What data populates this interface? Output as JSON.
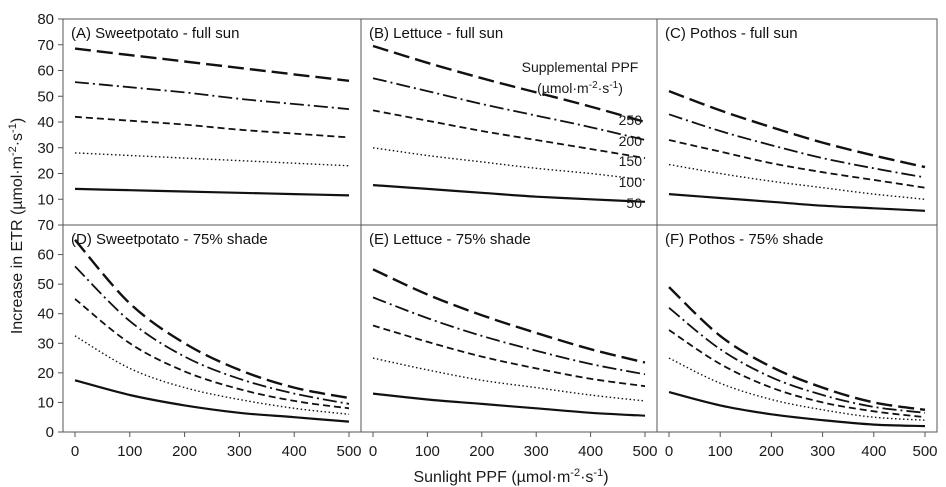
{
  "chart_data": {
    "type": "line",
    "xlabel": "Sunlight PPF (µmol·m⁻²·s⁻¹)",
    "ylabel": "Increase in ETR (µmol·m⁻²·s⁻¹)",
    "xlim": [
      0,
      500
    ],
    "xticks": [
      "0",
      "100",
      "200",
      "300",
      "400",
      "500"
    ],
    "ylim_top": [
      0,
      80
    ],
    "yticks_top": [
      "0",
      "10",
      "20",
      "30",
      "40",
      "50",
      "60",
      "70",
      "80"
    ],
    "ylim_bottom": [
      0,
      70
    ],
    "yticks_bottom": [
      "0",
      "10",
      "20",
      "30",
      "40",
      "50",
      "60",
      "70"
    ],
    "grid": false,
    "legend": {
      "title_line1": "Supplemental PPF",
      "title_line2": "(µmol·m⁻²·s⁻¹)",
      "placement": "panel-B-right",
      "levels": [
        "250",
        "200",
        "150",
        "100",
        "50"
      ]
    },
    "x": [
      0,
      100,
      200,
      300,
      400,
      500
    ],
    "series_styles": [
      {
        "level": "50",
        "dash": "",
        "width": 2.2
      },
      {
        "level": "100",
        "dash": "1.5,2.5",
        "width": 1.4
      },
      {
        "level": "150",
        "dash": "7,4",
        "width": 1.8
      },
      {
        "level": "200",
        "dash": "14,4,2,4",
        "width": 1.8
      },
      {
        "level": "250",
        "dash": "16,6",
        "width": 2.4
      }
    ],
    "panels": [
      {
        "title": "(A) Sweetpotato - full sun",
        "row": 0,
        "col": 0,
        "series": [
          {
            "values": [
              14,
              13.5,
              13,
              12.5,
              12,
              11.5
            ]
          },
          {
            "values": [
              28,
              27,
              26,
              25,
              24,
              23
            ]
          },
          {
            "values": [
              42,
              40.5,
              39,
              37,
              35.5,
              34
            ]
          },
          {
            "values": [
              55.5,
              53.5,
              51.5,
              49,
              47,
              45
            ]
          },
          {
            "values": [
              68.5,
              66,
              63.5,
              61,
              58.5,
              56
            ]
          }
        ]
      },
      {
        "title": "(B) Lettuce - full sun",
        "row": 0,
        "col": 1,
        "series": [
          {
            "values": [
              15.5,
              14,
              12.5,
              11,
              10,
              9
            ]
          },
          {
            "values": [
              30,
              27,
              24.5,
              22,
              20,
              17.5
            ]
          },
          {
            "values": [
              44.5,
              40.5,
              36.5,
              33,
              29.5,
              26
            ]
          },
          {
            "values": [
              57,
              52,
              47,
              42.5,
              38,
              33
            ]
          },
          {
            "values": [
              69.5,
              63,
              57,
              51.5,
              46,
              40
            ]
          }
        ]
      },
      {
        "title": "(C) Pothos - full sun",
        "row": 0,
        "col": 2,
        "series": [
          {
            "values": [
              12,
              10.5,
              9,
              7.5,
              6.5,
              5.5
            ]
          },
          {
            "values": [
              23.5,
              20,
              17,
              14.5,
              12,
              10
            ]
          },
          {
            "values": [
              33,
              28.5,
              24,
              20.5,
              17.5,
              14.5
            ]
          },
          {
            "values": [
              43,
              36.5,
              31,
              26,
              22,
              18.5
            ]
          },
          {
            "values": [
              52,
              44.5,
              38,
              32,
              27,
              22.5
            ]
          }
        ]
      },
      {
        "title": "(D) Sweetpotato - 75% shade",
        "row": 1,
        "col": 0,
        "series": [
          {
            "values": [
              17.5,
              12.5,
              9,
              6.5,
              5,
              3.5
            ]
          },
          {
            "values": [
              32.5,
              21.5,
              15,
              11,
              8,
              6
            ]
          },
          {
            "values": [
              45,
              30,
              20.5,
              14.5,
              10.5,
              8
            ]
          },
          {
            "values": [
              56,
              37.5,
              25.5,
              18,
              13,
              9.5
            ]
          },
          {
            "values": [
              65,
              43.5,
              30,
              21,
              15,
              11.5
            ]
          }
        ]
      },
      {
        "title": "(E) Lettuce - 75% shade",
        "row": 1,
        "col": 1,
        "series": [
          {
            "values": [
              13,
              11,
              9.5,
              8,
              6.5,
              5.5
            ]
          },
          {
            "values": [
              25,
              21,
              17.5,
              15,
              12.5,
              10.5
            ]
          },
          {
            "values": [
              36,
              30.5,
              25.5,
              21.5,
              18,
              15.5
            ]
          },
          {
            "values": [
              45.5,
              38.5,
              32.5,
              27.5,
              23,
              19.5
            ]
          },
          {
            "values": [
              55,
              46.5,
              39.5,
              33.5,
              28,
              23.5
            ]
          }
        ]
      },
      {
        "title": "(F) Pothos - 75% shade",
        "row": 1,
        "col": 2,
        "series": [
          {
            "values": [
              13.5,
              9,
              6,
              4,
              2.5,
              2
            ]
          },
          {
            "values": [
              25,
              16.5,
              11,
              7.5,
              5,
              4
            ]
          },
          {
            "values": [
              34.5,
              23,
              15,
              10,
              7,
              5
            ]
          },
          {
            "values": [
              42,
              28,
              18.5,
              12.5,
              8.5,
              6.5
            ]
          },
          {
            "values": [
              49,
              32.5,
              22,
              15,
              10,
              7.5
            ]
          }
        ]
      }
    ]
  }
}
